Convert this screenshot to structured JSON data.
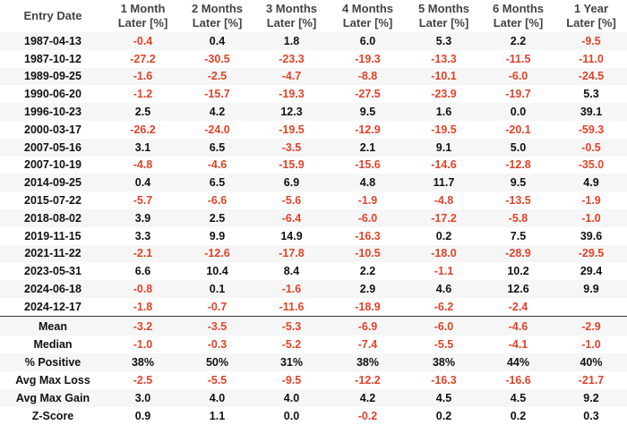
{
  "table": {
    "columns": [
      "Entry Date",
      "1 Month\nLater [%]",
      "2 Months\nLater [%]",
      "3 Months\nLater [%]",
      "4 Months\nLater [%]",
      "5 Months\nLater [%]",
      "6 Months\nLater [%]",
      "1 Year\nLater [%]"
    ],
    "rows": [
      [
        "1987-04-13",
        "-0.4",
        "0.4",
        "1.8",
        "6.0",
        "5.3",
        "2.2",
        "-9.5"
      ],
      [
        "1987-10-12",
        "-27.2",
        "-30.5",
        "-23.3",
        "-19.3",
        "-13.3",
        "-11.5",
        "-11.0"
      ],
      [
        "1989-09-25",
        "-1.6",
        "-2.5",
        "-4.7",
        "-8.8",
        "-10.1",
        "-6.0",
        "-24.5"
      ],
      [
        "1990-06-20",
        "-1.2",
        "-15.7",
        "-19.3",
        "-27.5",
        "-23.9",
        "-19.7",
        "5.3"
      ],
      [
        "1996-10-23",
        "2.5",
        "4.2",
        "12.3",
        "9.5",
        "1.6",
        "0.0",
        "39.1"
      ],
      [
        "2000-03-17",
        "-26.2",
        "-24.0",
        "-19.5",
        "-12.9",
        "-19.5",
        "-20.1",
        "-59.3"
      ],
      [
        "2007-05-16",
        "3.1",
        "6.5",
        "-3.5",
        "2.1",
        "9.1",
        "5.0",
        "-0.5"
      ],
      [
        "2007-10-19",
        "-4.8",
        "-4.6",
        "-15.9",
        "-15.6",
        "-14.6",
        "-12.8",
        "-35.0"
      ],
      [
        "2014-09-25",
        "0.4",
        "6.5",
        "6.9",
        "4.8",
        "11.7",
        "9.5",
        "4.9"
      ],
      [
        "2015-07-22",
        "-5.7",
        "-6.6",
        "-5.6",
        "-1.9",
        "-4.8",
        "-13.5",
        "-1.9"
      ],
      [
        "2018-08-02",
        "3.9",
        "2.5",
        "-6.4",
        "-6.0",
        "-17.2",
        "-5.8",
        "-1.0"
      ],
      [
        "2019-11-15",
        "3.3",
        "9.9",
        "14.9",
        "-16.3",
        "0.2",
        "7.5",
        "39.6"
      ],
      [
        "2021-11-22",
        "-2.1",
        "-12.6",
        "-17.8",
        "-10.5",
        "-18.0",
        "-28.9",
        "-29.5"
      ],
      [
        "2023-05-31",
        "6.6",
        "10.4",
        "8.4",
        "2.2",
        "-1.1",
        "10.2",
        "29.4"
      ],
      [
        "2024-06-18",
        "-0.8",
        "0.1",
        "-1.6",
        "2.9",
        "4.6",
        "12.6",
        "9.9"
      ],
      [
        "2024-12-17",
        "-1.8",
        "-0.7",
        "-11.6",
        "-18.9",
        "-6.2",
        "-2.4",
        null
      ]
    ],
    "summary_rows": [
      [
        "Mean",
        "-3.2",
        "-3.5",
        "-5.3",
        "-6.9",
        "-6.0",
        "-4.6",
        "-2.9"
      ],
      [
        "Median",
        "-1.0",
        "-0.3",
        "-5.2",
        "-7.4",
        "-5.5",
        "-4.1",
        "-1.0"
      ],
      [
        "% Positive",
        "38%",
        "50%",
        "31%",
        "38%",
        "38%",
        "44%",
        "40%"
      ],
      [
        "Avg Max Loss",
        "-2.5",
        "-5.5",
        "-9.5",
        "-12.2",
        "-16.3",
        "-16.6",
        "-21.7"
      ],
      [
        "Avg Max Gain",
        "3.0",
        "4.0",
        "4.0",
        "4.2",
        "4.5",
        "4.5",
        "9.2"
      ],
      [
        "Z-Score",
        "0.9",
        "1.1",
        "0.0",
        "-0.2",
        "0.2",
        "0.2",
        "0.3"
      ]
    ]
  }
}
